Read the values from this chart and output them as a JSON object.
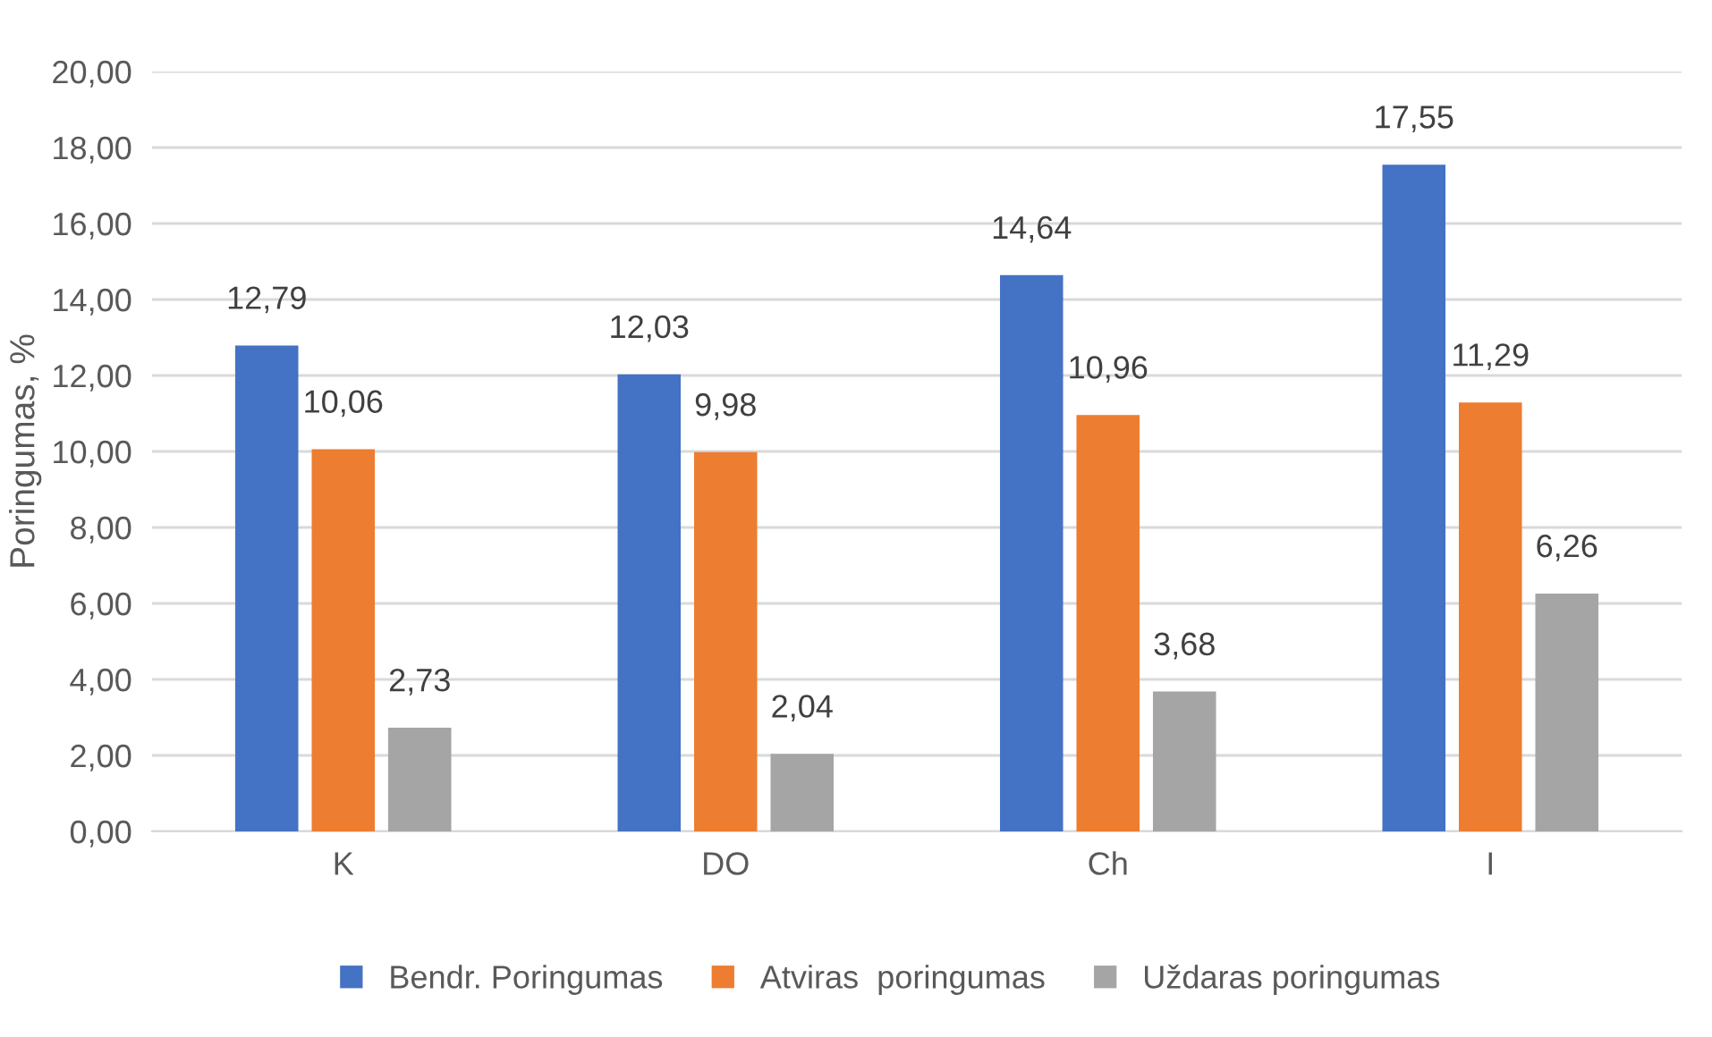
{
  "chart_data": {
    "type": "bar",
    "ylabel": "Poringumas, %",
    "categories": [
      "K",
      "DO",
      "Ch",
      "I"
    ],
    "series": [
      {
        "name": "Bendr. Poringumas",
        "color": "#4472c4",
        "values": [
          12.79,
          12.03,
          14.64,
          17.55
        ],
        "value_labels": [
          "12,79",
          "12,03",
          "14,64",
          "17,55"
        ]
      },
      {
        "name": "Atviras  poringumas",
        "color": "#ed7d31",
        "values": [
          10.06,
          9.98,
          10.96,
          11.29
        ],
        "value_labels": [
          "10,06",
          "9,98",
          "10,96",
          "11,29"
        ]
      },
      {
        "name": "Uždaras poringumas",
        "color": "#a5a5a5",
        "values": [
          2.73,
          2.04,
          3.68,
          6.26
        ],
        "value_labels": [
          "2,73",
          "2,04",
          "3,68",
          "6,26"
        ]
      }
    ],
    "ylim": [
      0,
      20
    ],
    "yticks": [
      {
        "value": 0,
        "label": "0,00"
      },
      {
        "value": 2,
        "label": "2,00"
      },
      {
        "value": 4,
        "label": "4,00"
      },
      {
        "value": 6,
        "label": "6,00"
      },
      {
        "value": 8,
        "label": "8,00"
      },
      {
        "value": 10,
        "label": "10,00"
      },
      {
        "value": 12,
        "label": "12,00"
      },
      {
        "value": 14,
        "label": "14,00"
      },
      {
        "value": 16,
        "label": "16,00"
      },
      {
        "value": 18,
        "label": "18,00"
      },
      {
        "value": 20,
        "label": "20,00"
      }
    ],
    "grid": "y",
    "legend": "bottom"
  }
}
